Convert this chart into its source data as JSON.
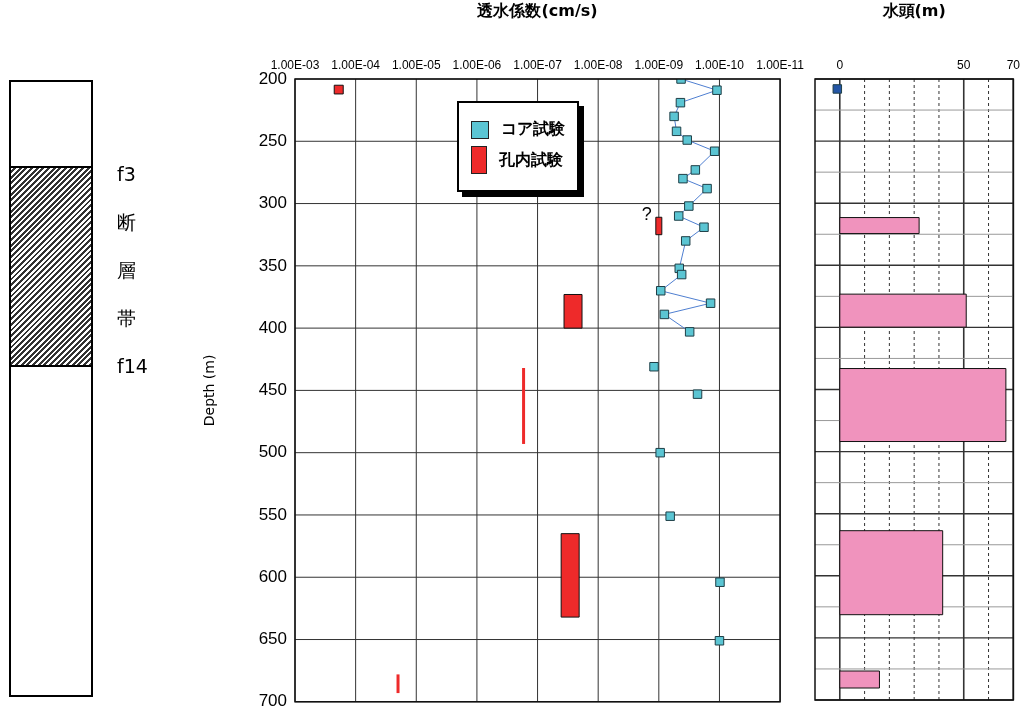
{
  "chart_data": [
    {
      "type": "other",
      "annotations": [
        "f3",
        "断",
        "層",
        "帯",
        "f14"
      ]
    },
    {
      "type": "scatter",
      "xlabel": "透水係数(cm/s)",
      "ylabel": "Depth (m)",
      "xlim": [
        0.001,
        1e-11
      ],
      "xticks": [
        {
          "value": 0.001,
          "label": "1.00E-03"
        },
        {
          "value": 0.0001,
          "label": "1.00E-04"
        },
        {
          "value": 1e-05,
          "label": "1.00E-05"
        },
        {
          "value": 1e-06,
          "label": "1.00E-06"
        },
        {
          "value": 1e-07,
          "label": "1.00E-07"
        },
        {
          "value": 1e-08,
          "label": "1.00E-08"
        },
        {
          "value": 1e-09,
          "label": "1.00E-09"
        },
        {
          "value": 1e-10,
          "label": "1.00E-10"
        },
        {
          "value": 1e-11,
          "label": "1.00E-11"
        }
      ],
      "ylim": [
        700,
        200
      ],
      "yticks": [
        200,
        250,
        300,
        350,
        400,
        450,
        500,
        550,
        600,
        650,
        700
      ],
      "log": "x",
      "grid": true,
      "legend": "top",
      "marker": "square",
      "series": [
        {
          "type": "line",
          "name": "コア試験",
          "color": "#5bc5d3",
          "x": [
            4.3e-10,
            1.1e-10,
            4.4e-10,
            5.6e-10,
            5.1e-10,
            3.4e-10,
            1.2e-10,
            2.5e-10,
            4e-10,
            1.6e-10,
            3.2e-10,
            4.7e-10,
            1.8e-10,
            3.6e-10,
            4.6e-10,
            4.2e-10,
            9.3e-10,
            1.4e-10,
            8.1e-10,
            3.1e-10
          ],
          "values": [
            200,
            209,
            219,
            230,
            242,
            249,
            258,
            273,
            280,
            288,
            302,
            310,
            319,
            330,
            352,
            357,
            370,
            380,
            389,
            403
          ]
        },
        {
          "type": "scatter",
          "color": "#5bc5d3",
          "x": [
            1.2e-09,
            2.3e-10,
            9.5e-10,
            6.5e-10,
            9.8e-11,
            1e-10
          ],
          "values": [
            431,
            453,
            500,
            551,
            604,
            651
          ]
        },
        {
          "type": "bar",
          "name": "孔内試験",
          "color": "#ee2a2a",
          "x": [
            0.00019,
            2e-05,
            1.7e-07,
            2.9e-08,
            2.6e-08,
            1e-09
          ],
          "base": [
            205,
            678,
            432,
            565,
            373,
            311
          ],
          "values": [
            7,
            15,
            61,
            67,
            27,
            14
          ]
        }
      ],
      "annotations": [
        {
          "text": "?",
          "x": 1e-09,
          "y": 311
        }
      ]
    },
    {
      "type": "bar",
      "orientation": "horizontal",
      "xlabel": "水頭(m)",
      "xlim": [
        -10,
        70
      ],
      "xticks": [
        0,
        {
          "value": 10,
          "label": null
        },
        {
          "value": 20,
          "label": null
        },
        {
          "value": 30,
          "label": null
        },
        {
          "value": 40,
          "label": null
        },
        50,
        {
          "value": 60,
          "label": null
        },
        70
      ],
      "ylim": [
        700,
        200
      ],
      "yticks": [
        200,
        {
          "value": 225,
          "label": null
        },
        250,
        {
          "value": 275,
          "label": null
        },
        300,
        {
          "value": 325,
          "label": null
        },
        350,
        {
          "value": 375,
          "label": null
        },
        400,
        {
          "value": 425,
          "label": null
        },
        450,
        {
          "value": 475,
          "label": null
        },
        500,
        {
          "value": 525,
          "label": null
        },
        550,
        {
          "value": 575,
          "label": null
        },
        600,
        {
          "value": 625,
          "label": null
        },
        650,
        {
          "value": 675,
          "label": null
        },
        700
      ],
      "tick_labels": "x",
      "grid": true,
      "marker": "square",
      "series": [
        {
          "type": "bar",
          "color": "#f093bd",
          "x": [
            318,
            386.5,
            462.5,
            597.5,
            683.5
          ],
          "values": [
            32,
            51,
            67,
            41.5,
            16
          ]
        },
        {
          "type": "scatter",
          "color": "#2456a6",
          "x": [
            208
          ],
          "values": [
            -1
          ]
        }
      ]
    }
  ]
}
